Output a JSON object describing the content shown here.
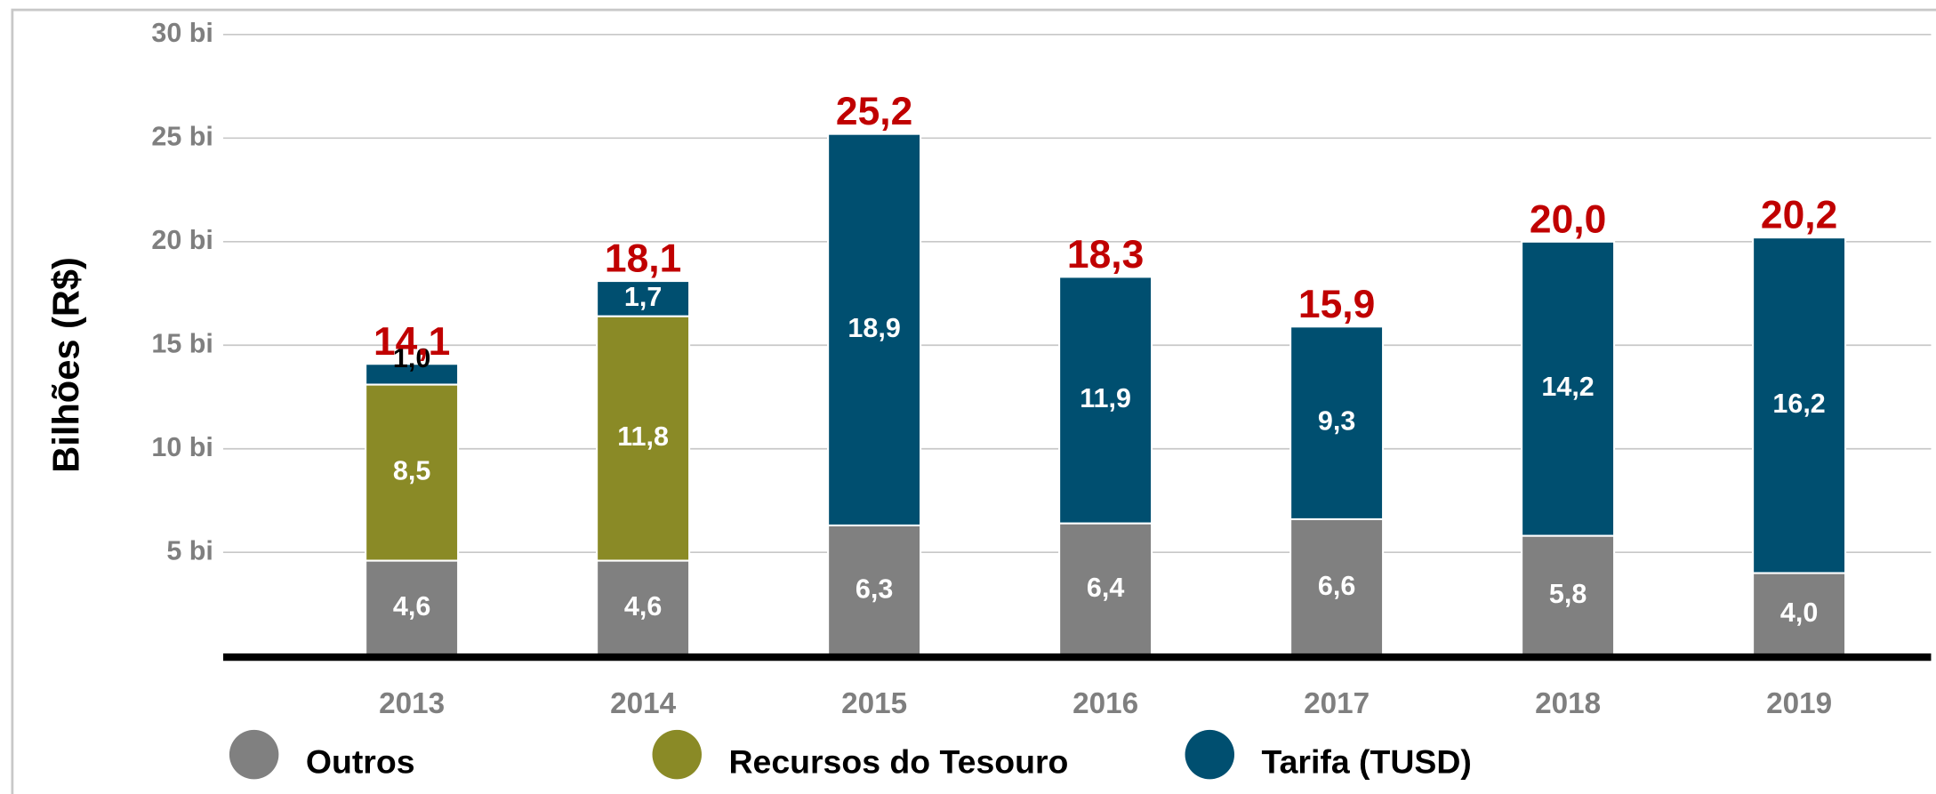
{
  "chart_data": {
    "type": "stacked_bar",
    "ylabel": "Bilhões (R$)",
    "categories": [
      "2013",
      "2014",
      "2015",
      "2016",
      "2017",
      "2018",
      "2019"
    ],
    "series": [
      {
        "name": "Outros",
        "color": "#808080",
        "values": [
          4.6,
          4.6,
          6.3,
          6.4,
          6.6,
          5.8,
          4.0
        ],
        "value_labels": [
          "4,6",
          "4,6",
          "6,3",
          "6,4",
          "6,6",
          "5,8",
          "4,0"
        ]
      },
      {
        "name": "Recursos do Tesouro",
        "color": "#8a8a26",
        "values": [
          8.5,
          11.8,
          null,
          null,
          null,
          null,
          null
        ],
        "value_labels": [
          "8,5",
          "11,8",
          null,
          null,
          null,
          null,
          null
        ]
      },
      {
        "name": "Tarifa (TUSD)",
        "color": "#004f70",
        "values": [
          1.0,
          1.7,
          18.9,
          11.9,
          9.3,
          14.2,
          16.2
        ],
        "value_labels": [
          "1,0",
          "1,7",
          "18,9",
          "11,9",
          "9,3",
          "14,2",
          "16,2"
        ]
      }
    ],
    "totals": [
      14.1,
      18.1,
      25.2,
      18.3,
      15.9,
      20.0,
      20.2
    ],
    "total_labels": [
      "14,1",
      "18,1",
      "25,2",
      "18,3",
      "15,9",
      "20,0",
      "20,2"
    ],
    "total_color": "#c00000",
    "ylim": [
      0,
      30
    ],
    "yticks": [
      {
        "value": 5,
        "label": "5 bi"
      },
      {
        "value": 10,
        "label": "10 bi"
      },
      {
        "value": 15,
        "label": "15 bi"
      },
      {
        "value": 20,
        "label": "20 bi"
      },
      {
        "value": 25,
        "label": "25 bi"
      },
      {
        "value": 30,
        "label": "30 bi"
      }
    ],
    "grid": true
  }
}
